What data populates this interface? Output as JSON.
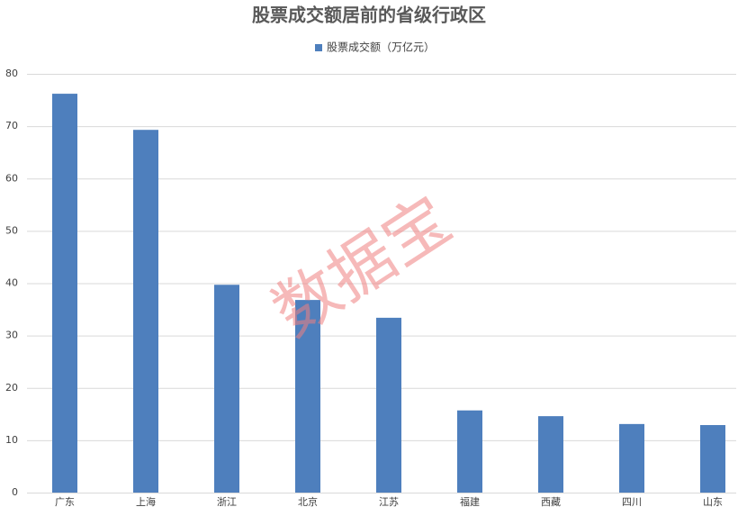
{
  "chart_data": {
    "type": "bar",
    "title": "股票成交额居前的省级行政区",
    "categories": [
      "广东",
      "上海",
      "浙江",
      "北京",
      "江苏",
      "福建",
      "西藏",
      "四川",
      "山东"
    ],
    "series": [
      {
        "name": "股票成交额（万亿元）",
        "color": "#4e7fbd",
        "values": [
          76.2,
          69.3,
          39.7,
          36.8,
          33.4,
          15.7,
          14.6,
          13.1,
          12.9
        ]
      }
    ],
    "ylim": [
      0,
      80
    ],
    "yticks": [
      0,
      10,
      20,
      30,
      40,
      50,
      60,
      70,
      80
    ],
    "grid": true,
    "legend": "top",
    "watermark": "数据宝"
  }
}
